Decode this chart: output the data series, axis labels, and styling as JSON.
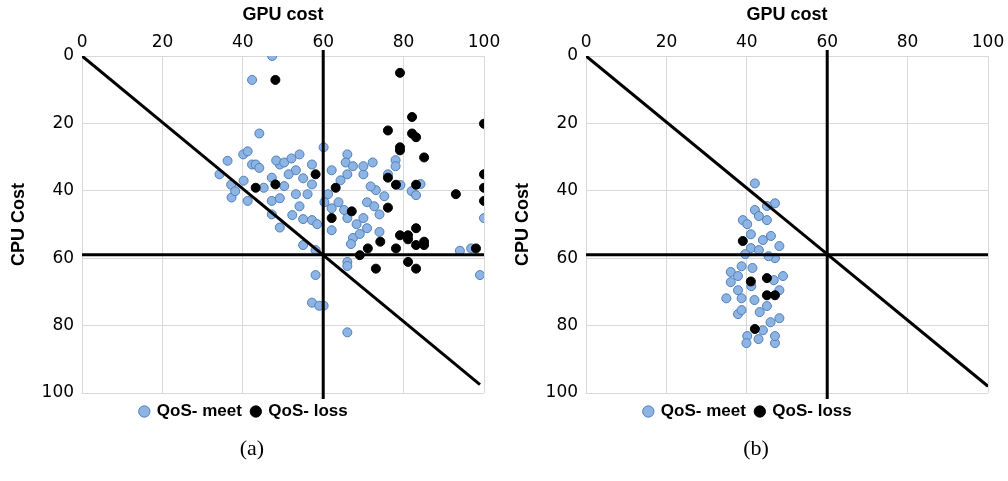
{
  "chart_data": [
    {
      "type": "scatter",
      "xlabel": "GPU cost",
      "ylabel": "CPU Cost",
      "xlim": [
        0,
        100
      ],
      "xticks": [
        0,
        20,
        40,
        60,
        80,
        100
      ],
      "ylim": [
        100,
        0
      ],
      "yticks": [
        0,
        20,
        40,
        60,
        80,
        100
      ],
      "grid": true,
      "legend": "bottom",
      "marker": "circle",
      "annotations": [
        "(a)"
      ],
      "ref_lines": [
        {
          "axis": "x",
          "value": 60,
          "color": "#000000"
        },
        {
          "axis": "y",
          "value": 59,
          "color": "#000000"
        }
      ],
      "series": [
        {
          "name": "QoS- meet",
          "color": "#8eb4e3",
          "x": [
            47.3,
            42.3,
            44.1,
            36.2,
            34.2,
            40.1,
            41.2,
            37.1,
            37.2,
            38.1,
            40.2,
            41.2,
            42.3,
            43.2,
            44.1,
            45.2,
            47.2,
            47.2,
            47.2,
            49.2,
            49.2,
            49.2,
            48.3,
            50.3,
            52.1,
            54.1,
            53.2,
            55,
            57.2,
            53.2,
            54.1,
            52.3,
            55,
            57.2,
            58.5,
            56.1,
            57.2,
            50.3,
            51.4,
            55,
            58.1,
            60.1,
            62.1,
            61.2,
            60.3,
            62.1,
            63.8,
            65.2,
            66,
            68.3,
            67.4,
            66.9,
            69.1,
            70.9,
            70,
            70.9,
            72.7,
            74,
            74,
            75.2,
            73.1,
            71.8,
            70,
            72.3,
            70,
            66,
            65.6,
            67.4,
            66,
            64.3,
            62.1,
            78,
            78,
            76.1,
            79.2,
            84.2,
            82,
            83.1,
            100,
            94,
            96.8,
            99,
            66,
            66,
            58.1,
            57.2,
            60.1,
            59,
            66
          ],
          "values": [
            0,
            7.1,
            23,
            31.1,
            35.1,
            29.2,
            28.3,
            38.2,
            42,
            40.1,
            37,
            43,
            32.2,
            32.2,
            33.2,
            39.1,
            36.1,
            47,
            43,
            50.9,
            42.2,
            32.2,
            31,
            31.6,
            30.4,
            29.2,
            33.9,
            36.3,
            32.2,
            41,
            44.6,
            47.2,
            48.4,
            48.7,
            49.9,
            41,
            38.1,
            38.6,
            35.1,
            56.1,
            57.6,
            27.1,
            33.9,
            41,
            43.4,
            45.2,
            43.4,
            45.7,
            48.1,
            49.9,
            54,
            55.8,
            52.8,
            51.1,
            48.1,
            43.4,
            44.6,
            47,
            52.2,
            41.6,
            39.8,
            38.7,
            35.1,
            31.6,
            32.7,
            29.2,
            31.6,
            32.7,
            35.1,
            36.9,
            51.7,
            30.9,
            32.7,
            35.1,
            38.3,
            38,
            40.1,
            41.3,
            48.1,
            57.8,
            57.1,
            65,
            61.1,
            62.3,
            65,
            73.2,
            74.1,
            74.1,
            82
          ]
        },
        {
          "name": "QoS- loss",
          "color": "#000000",
          "x": [
            48.1,
            79.1,
            82.1,
            76.1,
            82.1,
            83.1,
            79.1,
            79.1,
            85.1,
            100,
            58.1,
            48.1,
            43.2,
            63.1,
            76.1,
            78.1,
            83.1,
            100,
            100,
            100,
            93,
            76.1,
            67.1,
            62.1,
            83.1,
            79.1,
            81.1,
            81.1,
            74.2,
            85.1,
            83.1,
            85.1,
            78.1,
            71.1,
            98,
            69.1,
            81.1,
            73.1,
            83.1
          ],
          "values": [
            7.1,
            5,
            18.1,
            22.1,
            23,
            24.1,
            27.1,
            28,
            30.1,
            20.1,
            35.1,
            38.1,
            39.1,
            39.1,
            36.1,
            38.2,
            38.2,
            35.1,
            39.1,
            43,
            41,
            45,
            46.1,
            48.1,
            51.1,
            53.2,
            53.2,
            54.4,
            55.1,
            55.1,
            56.1,
            56.1,
            57.1,
            57.1,
            57.1,
            59.1,
            61.1,
            63.1,
            63.1
          ]
        },
        {
          "type": "line",
          "color": "#000000",
          "marker": "none",
          "x": [
            0,
            99
          ],
          "values": [
            0,
            97.5
          ]
        }
      ]
    },
    {
      "type": "scatter",
      "xlabel": "GPU cost",
      "ylabel": "CPU Cost",
      "xlim": [
        0,
        100
      ],
      "xticks": [
        0,
        20,
        40,
        60,
        80,
        100
      ],
      "ylim": [
        100,
        0
      ],
      "yticks": [
        0,
        20,
        40,
        60,
        80,
        100
      ],
      "grid": true,
      "legend": "bottom",
      "marker": "circle",
      "annotations": [
        "(b)"
      ],
      "ref_lines": [
        {
          "axis": "x",
          "value": 60,
          "color": "#000000"
        },
        {
          "axis": "y",
          "value": 59,
          "color": "#000000"
        }
      ],
      "series": [
        {
          "name": "QoS- meet",
          "color": "#8eb4e3",
          "x": [
            42,
            47,
            45,
            42,
            43,
            39,
            40.1,
            45,
            41,
            46,
            48.1,
            44,
            41,
            43,
            47,
            38.7,
            36,
            36,
            49,
            46.7,
            37.8,
            34.9,
            38.7,
            41.9,
            37.8,
            43.2,
            48.1,
            45.9,
            40.1,
            39.9,
            42.9,
            47,
            47,
            44,
            38.7,
            41.1,
            48.1,
            45,
            39.6,
            45.4,
            41.4,
            37.8
          ],
          "values": [
            37.8,
            43.7,
            44.5,
            45.7,
            47.5,
            48.7,
            49.9,
            48.7,
            52.9,
            53.4,
            56.4,
            54.6,
            57,
            57.6,
            60,
            62.4,
            64.1,
            67.1,
            65.3,
            66.5,
            69.5,
            71.9,
            71.9,
            72.4,
            76.6,
            76,
            77.8,
            79,
            83.1,
            85.2,
            84,
            85.2,
            83.1,
            81.4,
            75.4,
            68.3,
            69.5,
            74.2,
            58.8,
            59.4,
            62.9,
            65.3
          ]
        },
        {
          "name": "QoS- loss",
          "color": "#000000",
          "x": [
            39,
            41,
            45,
            45,
            47,
            42
          ],
          "values": [
            54.9,
            66.9,
            65.9,
            71,
            71,
            81
          ]
        },
        {
          "type": "line",
          "color": "#000000",
          "marker": "none",
          "x": [
            0,
            100
          ],
          "values": [
            0,
            98
          ]
        }
      ]
    }
  ]
}
